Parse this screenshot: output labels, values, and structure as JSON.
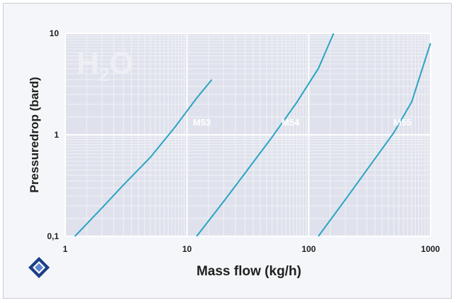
{
  "chart_data": {
    "type": "line",
    "title": "",
    "watermark": "H2O",
    "xlabel": "Mass flow (kg/h)",
    "ylabel": "Pressuredrop (bard)",
    "xscale": "log",
    "yscale": "log",
    "xlim": [
      1,
      1000
    ],
    "ylim": [
      0.1,
      10
    ],
    "xticks": [
      "1",
      "10",
      "100",
      "1000"
    ],
    "yticks": [
      "0,1",
      "1",
      "10"
    ],
    "grid": true,
    "series": [
      {
        "name": "M53",
        "x": [
          1.2,
          2,
          3,
          5,
          8,
          12,
          16
        ],
        "y": [
          0.1,
          0.19,
          0.32,
          0.6,
          1.2,
          2.3,
          3.5
        ]
      },
      {
        "name": "M54",
        "x": [
          12,
          20,
          30,
          50,
          80,
          120,
          160
        ],
        "y": [
          0.1,
          0.22,
          0.42,
          0.95,
          2.1,
          4.5,
          10
        ]
      },
      {
        "name": "M55",
        "x": [
          120,
          200,
          300,
          500,
          700,
          1000
        ],
        "y": [
          0.1,
          0.23,
          0.45,
          1.05,
          2.1,
          8
        ]
      }
    ],
    "colors": {
      "plot_bg": "#dfe2ec",
      "grid_minor": "#f2f3f7",
      "grid_major": "#ffffff",
      "line": "#2aa3c5",
      "text": "#1f1f1f",
      "watermark": "#edeff5",
      "logo_dark": "#1b3f87",
      "logo_light": "#5d86cf"
    }
  }
}
